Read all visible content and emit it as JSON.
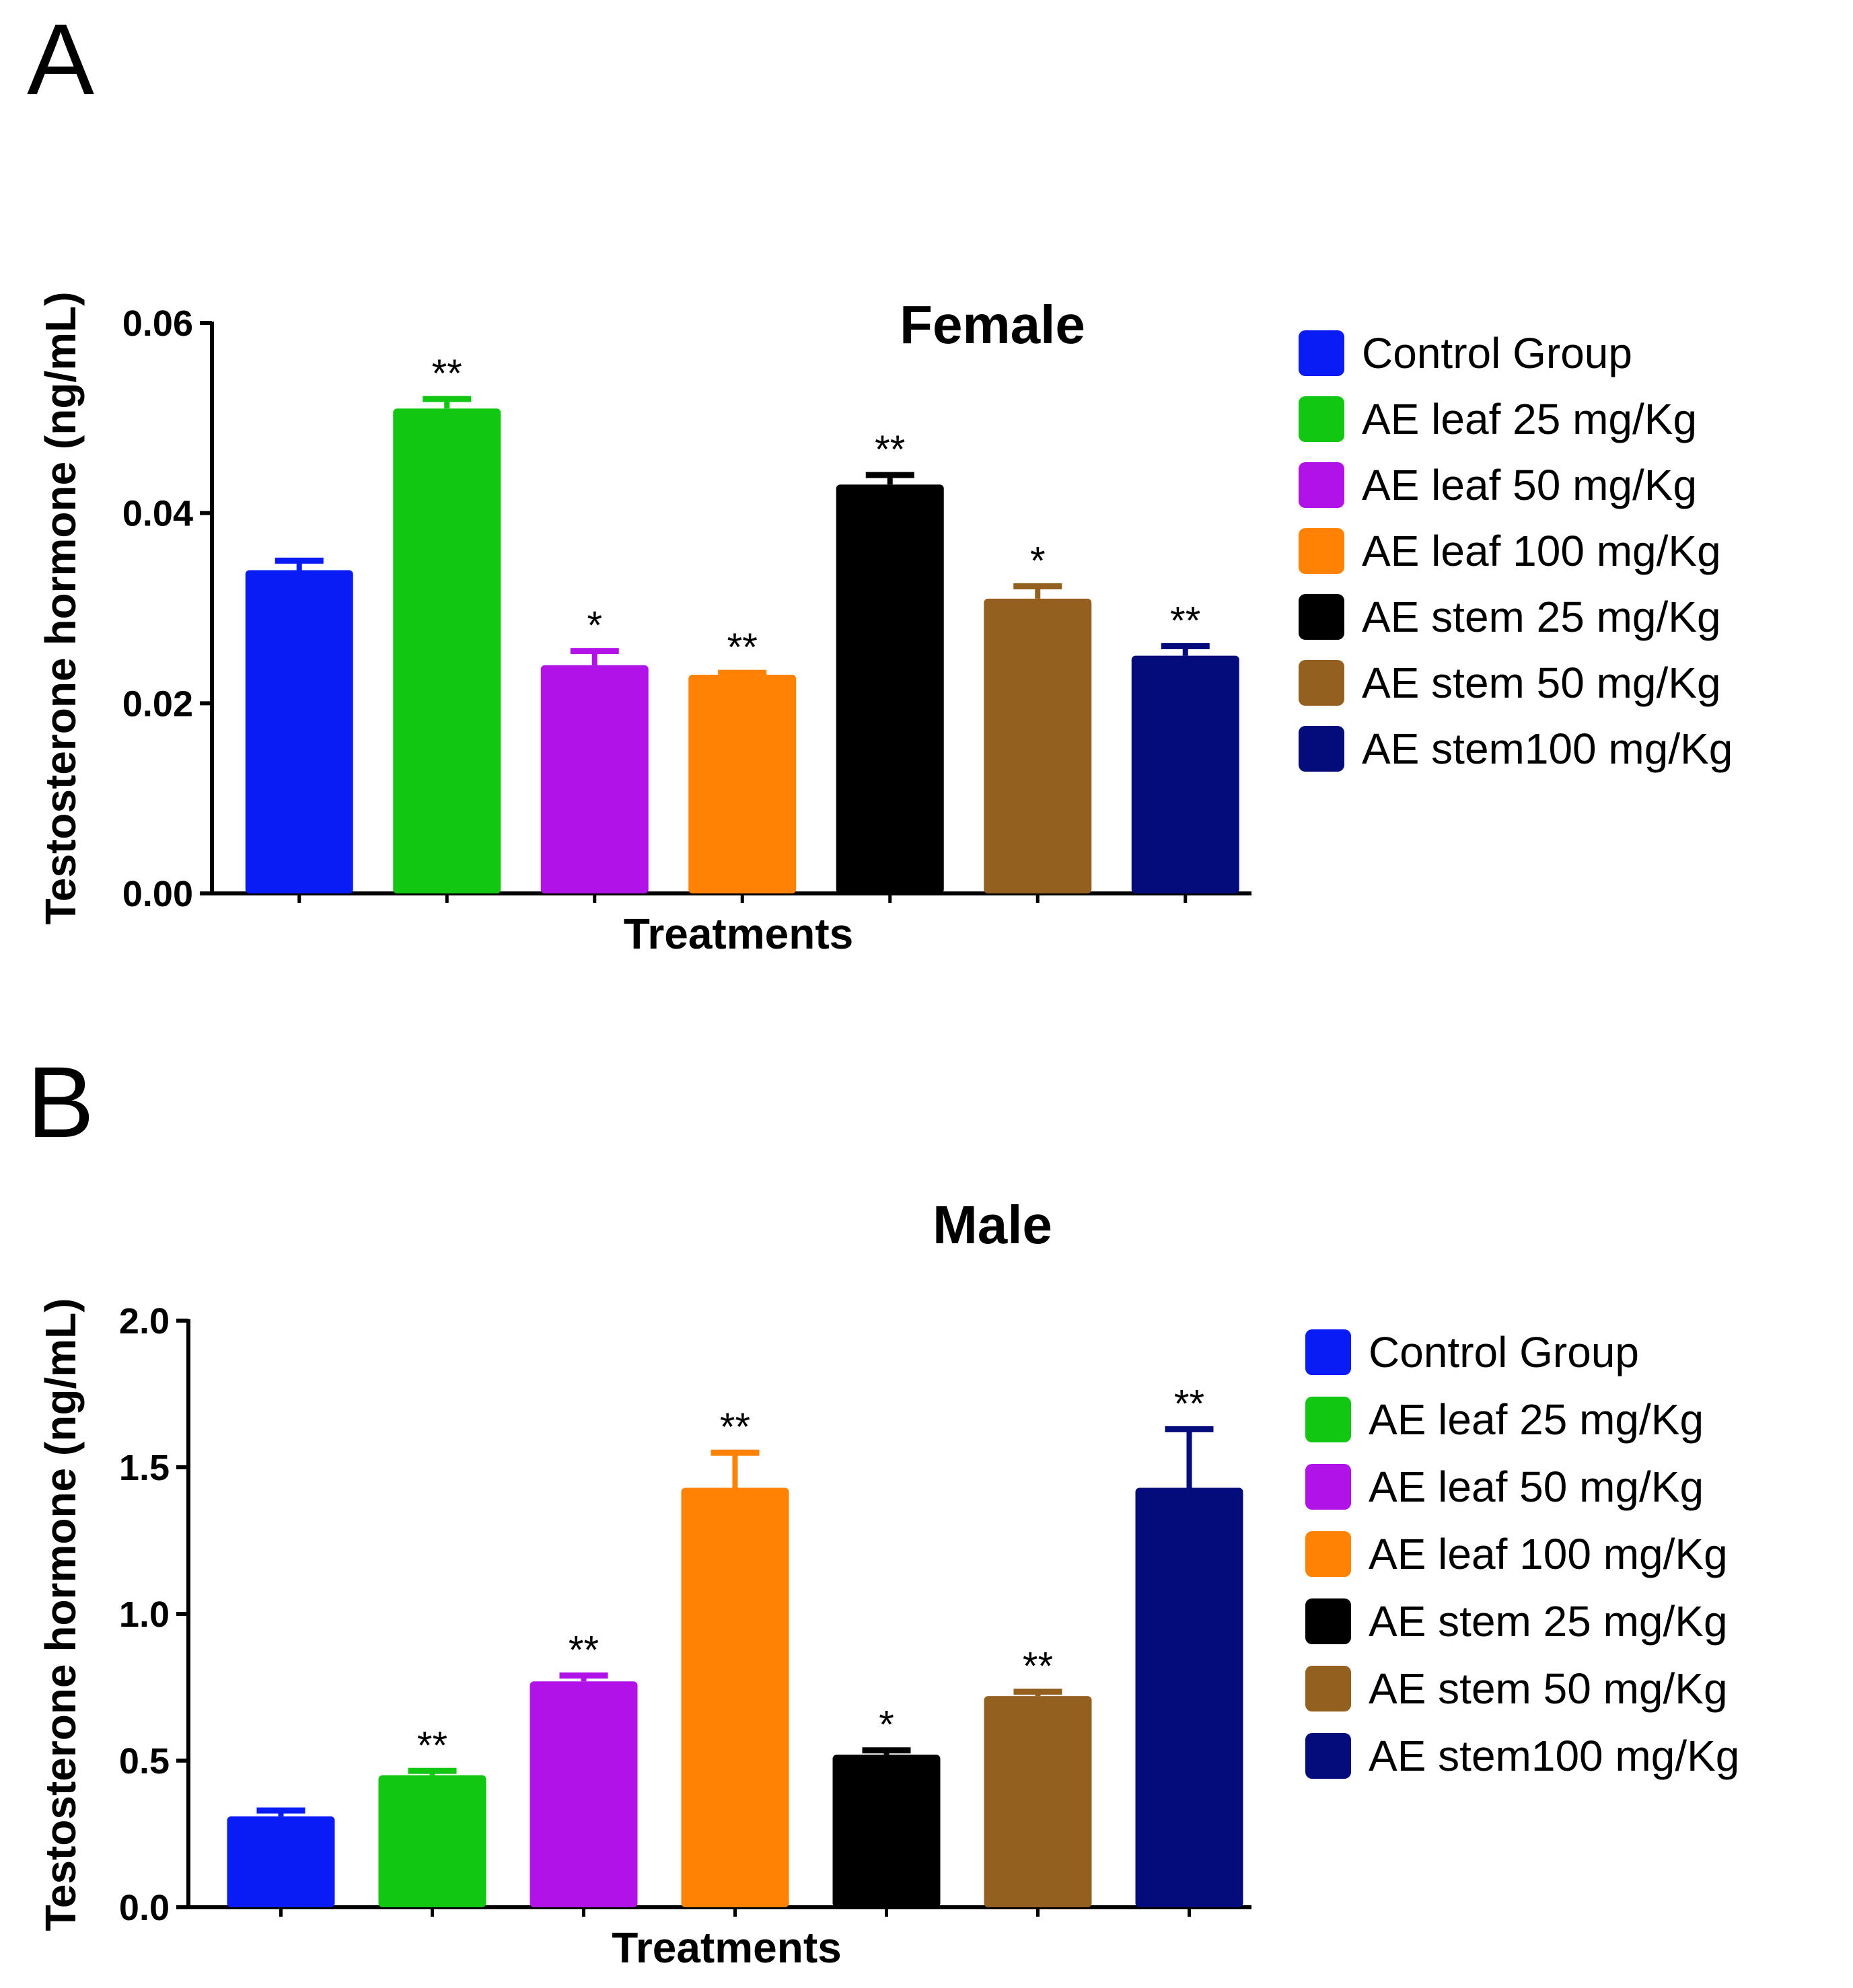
{
  "chart_data": [
    {
      "type": "bar",
      "panel_label": "A",
      "title": "Female",
      "xlabel": "Treatments",
      "ylabel": "Testosterone hormone  (ng/mL)",
      "ylim": [
        0,
        0.06
      ],
      "yticks": [
        0.0,
        0.02,
        0.04,
        0.06
      ],
      "ytick_labels": [
        "0.00",
        "0.02",
        "0.04",
        "0.06"
      ],
      "legend_position": "right",
      "categories": [
        "Control Group",
        "AE leaf 25 mg/Kg",
        "AE leaf 50 mg/Kg",
        "AE leaf 100 mg/Kg",
        "AE stem 25 mg/Kg",
        "AE stem 50 mg/Kg",
        "AE stem100 mg/Kg"
      ],
      "values": [
        0.034,
        0.051,
        0.024,
        0.023,
        0.043,
        0.031,
        0.025
      ],
      "errors": [
        0.001,
        0.001,
        0.0015,
        0.0002,
        0.001,
        0.0013,
        0.001
      ],
      "significance": [
        "",
        "**",
        "*",
        "**",
        "**",
        "*",
        "**"
      ],
      "colors": [
        "#0a1cf5",
        "#12c712",
        "#b012e8",
        "#ff8205",
        "#000000",
        "#936020",
        "#040c7c"
      ]
    },
    {
      "type": "bar",
      "panel_label": "B",
      "title": "Male",
      "xlabel": "Treatments",
      "ylabel": "Testosterone hormone  (ng/mL)",
      "ylim": [
        0,
        2.0
      ],
      "yticks": [
        0.0,
        0.5,
        1.0,
        1.5,
        2.0
      ],
      "ytick_labels": [
        "0.0",
        "0.5",
        "1.0",
        "1.5",
        "2.0"
      ],
      "legend_position": "right",
      "categories": [
        "Control Group",
        "AE leaf 25 mg/Kg",
        "AE leaf 50 mg/Kg",
        "AE leaf 100 mg/Kg",
        "AE stem 25 mg/Kg",
        "AE stem 50 mg/Kg",
        "AE stem100 mg/Kg"
      ],
      "values": [
        0.31,
        0.45,
        0.77,
        1.43,
        0.52,
        0.72,
        1.43
      ],
      "errors": [
        0.02,
        0.015,
        0.02,
        0.12,
        0.015,
        0.015,
        0.2
      ],
      "significance": [
        "",
        "**",
        "**",
        "**",
        "*",
        "**",
        "**"
      ],
      "colors": [
        "#0a1cf5",
        "#12c712",
        "#b012e8",
        "#ff8205",
        "#000000",
        "#936020",
        "#040c7c"
      ]
    }
  ]
}
